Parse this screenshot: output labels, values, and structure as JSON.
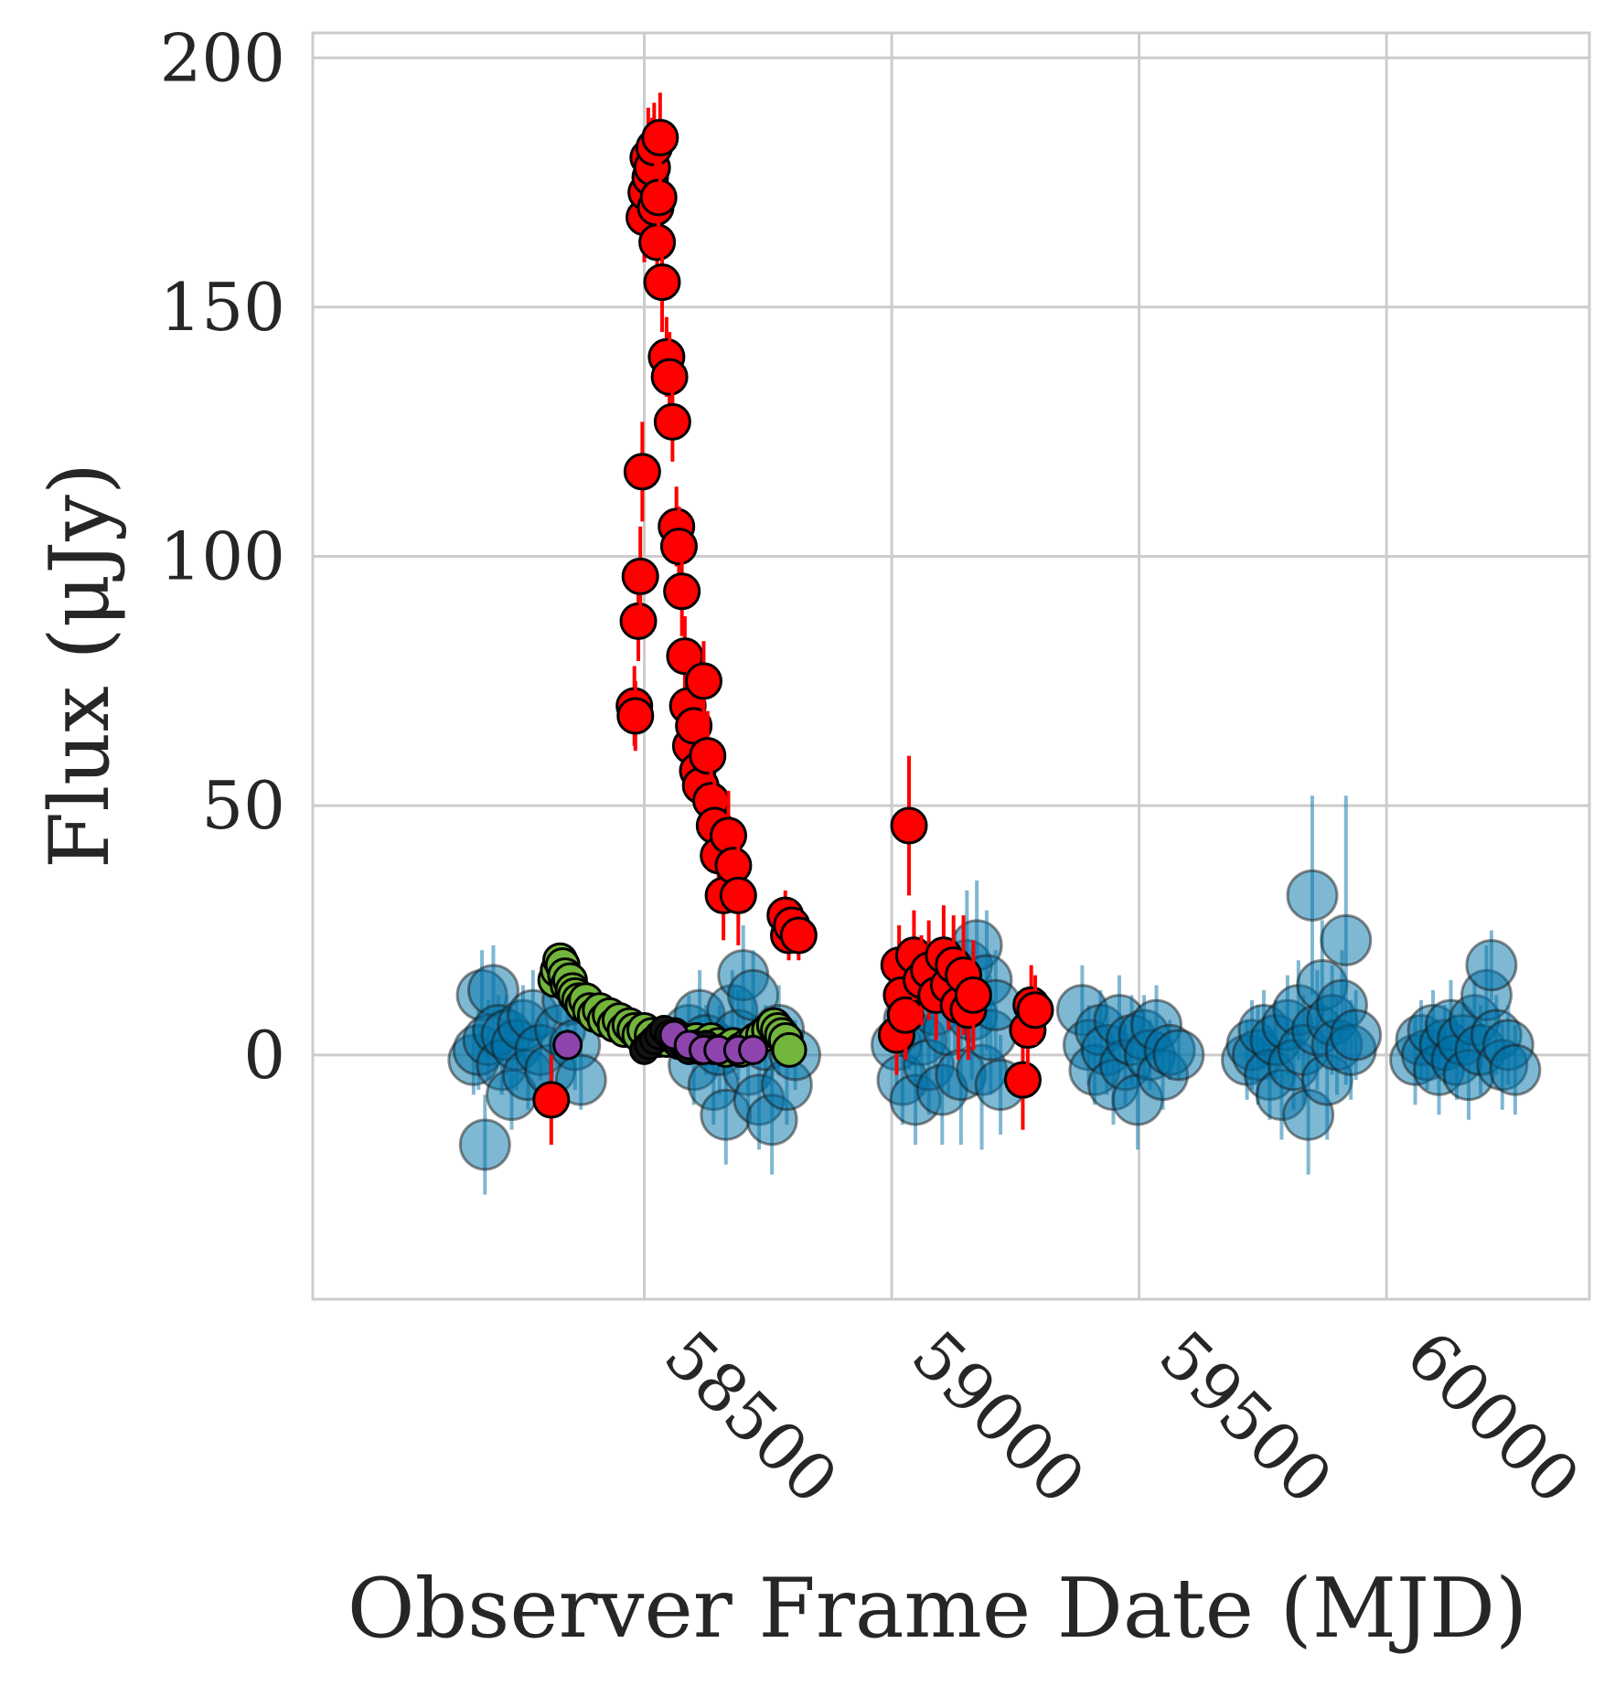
{
  "chart_data": {
    "type": "scatter",
    "title": "",
    "xlabel": "Observer Frame Date (MJD)",
    "ylabel": "Flux (μJy)",
    "xlim": [
      57830,
      60410
    ],
    "ylim": [
      -49,
      205
    ],
    "xticks": [
      58500,
      59000,
      59500,
      60000
    ],
    "xtick_labels": [
      "58500",
      "59000",
      "59500",
      "60000"
    ],
    "yticks": [
      0,
      50,
      100,
      150,
      200
    ],
    "ytick_labels": [
      "0",
      "50",
      "100",
      "150",
      "200"
    ],
    "grid": true,
    "legend": "none",
    "series": [
      {
        "color": "#0072a8",
        "alpha": 0.5,
        "points": [
          [
            58155,
            -1,
            7
          ],
          [
            58165,
            1,
            8
          ],
          [
            58172,
            12,
            9
          ],
          [
            58178,
            -18,
            10
          ],
          [
            58185,
            3,
            8
          ],
          [
            58195,
            13,
            9
          ],
          [
            58205,
            5,
            7
          ],
          [
            58212,
            -2,
            6
          ],
          [
            58222,
            4,
            8
          ],
          [
            58232,
            -8,
            7
          ],
          [
            58242,
            2,
            9
          ],
          [
            58255,
            6,
            8
          ],
          [
            58265,
            -4,
            7
          ],
          [
            58275,
            8,
            9
          ],
          [
            58290,
            1,
            6
          ],
          [
            58310,
            -3,
            8
          ],
          [
            58330,
            5,
            7
          ],
          [
            58345,
            11,
            8
          ],
          [
            58360,
            2,
            9
          ],
          [
            58372,
            -5,
            6
          ],
          [
            58590,
            5,
            7
          ],
          [
            58600,
            -2,
            8
          ],
          [
            58612,
            8,
            9
          ],
          [
            58625,
            3,
            7
          ],
          [
            58640,
            -6,
            8
          ],
          [
            58652,
            1,
            9
          ],
          [
            58665,
            -12,
            10
          ],
          [
            58678,
            9,
            8
          ],
          [
            58690,
            4,
            9
          ],
          [
            58700,
            16,
            10
          ],
          [
            58710,
            -3,
            8
          ],
          [
            58720,
            12,
            9
          ],
          [
            58732,
            -9,
            10
          ],
          [
            58745,
            2,
            8
          ],
          [
            58758,
            -13,
            11
          ],
          [
            58772,
            5,
            9
          ],
          [
            58788,
            -6,
            8
          ],
          [
            58805,
            0,
            7
          ],
          [
            59010,
            2,
            8
          ],
          [
            59022,
            -5,
            9
          ],
          [
            59035,
            7,
            10
          ],
          [
            59048,
            -9,
            9
          ],
          [
            59060,
            3,
            11
          ],
          [
            59075,
            -2,
            10
          ],
          [
            59088,
            9,
            12
          ],
          [
            59102,
            -7,
            11
          ],
          [
            59115,
            5,
            13
          ],
          [
            59128,
            13,
            12
          ],
          [
            59140,
            -4,
            14
          ],
          [
            59152,
            18,
            15
          ],
          [
            59162,
            8,
            13
          ],
          [
            59172,
            22,
            13
          ],
          [
            59182,
            -3,
            16
          ],
          [
            59192,
            15,
            14
          ],
          [
            59200,
            4,
            12
          ],
          [
            59210,
            10,
            11
          ],
          [
            59220,
            -6,
            10
          ],
          [
            59385,
            9,
            9
          ],
          [
            59398,
            2,
            8
          ],
          [
            59410,
            -3,
            7
          ],
          [
            59422,
            5,
            8
          ],
          [
            59435,
            1,
            9
          ],
          [
            59448,
            -6,
            8
          ],
          [
            59460,
            7,
            9
          ],
          [
            59472,
            -2,
            8
          ],
          [
            59485,
            3,
            9
          ],
          [
            59497,
            -9,
            10
          ],
          [
            59510,
            4,
            8
          ],
          [
            59522,
            0,
            7
          ],
          [
            59535,
            6,
            8
          ],
          [
            59548,
            -4,
            7
          ],
          [
            59562,
            1,
            6
          ],
          [
            59580,
            0,
            5
          ],
          [
            59718,
            -1,
            8
          ],
          [
            59728,
            2,
            9
          ],
          [
            59740,
            0,
            10
          ],
          [
            59752,
            5,
            8
          ],
          [
            59764,
            -4,
            9
          ],
          [
            59776,
            3,
            8
          ],
          [
            59788,
            -8,
            9
          ],
          [
            59800,
            6,
            10
          ],
          [
            59812,
            -2,
            9
          ],
          [
            59822,
            9,
            10
          ],
          [
            59832,
            1,
            11
          ],
          [
            59842,
            -12,
            12
          ],
          [
            59850,
            32,
            20
          ],
          [
            59860,
            5,
            12
          ],
          [
            59870,
            14,
            13
          ],
          [
            59880,
            -5,
            12
          ],
          [
            59890,
            7,
            11
          ],
          [
            59900,
            2,
            10
          ],
          [
            59910,
            10,
            11
          ],
          [
            59918,
            23,
            29
          ],
          [
            59928,
            1,
            10
          ],
          [
            59938,
            4,
            9
          ],
          [
            60058,
            -1,
            9
          ],
          [
            60070,
            3,
            8
          ],
          [
            60082,
            0,
            7
          ],
          [
            60094,
            5,
            8
          ],
          [
            60106,
            -3,
            9
          ],
          [
            60118,
            2,
            8
          ],
          [
            60130,
            6,
            9
          ],
          [
            60142,
            -1,
            8
          ],
          [
            60154,
            3,
            7
          ],
          [
            60166,
            -4,
            9
          ],
          [
            60178,
            7,
            8
          ],
          [
            60190,
            1,
            9
          ],
          [
            60202,
            12,
            10
          ],
          [
            60212,
            18,
            7
          ],
          [
            60222,
            4,
            8
          ],
          [
            60234,
            -2,
            9
          ],
          [
            60246,
            2,
            8
          ],
          [
            60260,
            -3,
            9
          ]
        ]
      },
      {
        "color": "#ff0000",
        "points": [
          [
            58312,
            -9,
            9
          ],
          [
            58480,
            70,
            8
          ],
          [
            58482,
            68,
            7
          ],
          [
            58488,
            87,
            8
          ],
          [
            58492,
            96,
            10
          ],
          [
            58496,
            117,
            10
          ],
          [
            58500,
            168,
            9
          ],
          [
            58504,
            173,
            9
          ],
          [
            58508,
            180,
            10
          ],
          [
            58512,
            176,
            9
          ],
          [
            58516,
            178,
            10
          ],
          [
            58520,
            182,
            9
          ],
          [
            58523,
            170,
            10
          ],
          [
            58526,
            163,
            9
          ],
          [
            58529,
            172,
            9
          ],
          [
            58532,
            184,
            9
          ],
          [
            58536,
            155,
            10
          ],
          [
            58545,
            140,
            8
          ],
          [
            58551,
            136,
            9
          ],
          [
            58557,
            127,
            8
          ],
          [
            58565,
            106,
            8
          ],
          [
            58570,
            102,
            8
          ],
          [
            58576,
            93,
            9
          ],
          [
            58582,
            80,
            8
          ],
          [
            58588,
            70,
            8
          ],
          [
            58594,
            62,
            7
          ],
          [
            58600,
            66,
            8
          ],
          [
            58608,
            57,
            8
          ],
          [
            58614,
            54,
            9
          ],
          [
            58620,
            75,
            8
          ],
          [
            58628,
            60,
            9
          ],
          [
            58635,
            51,
            9
          ],
          [
            58642,
            46,
            9
          ],
          [
            58650,
            40,
            8
          ],
          [
            58660,
            32,
            9
          ],
          [
            58670,
            44,
            9
          ],
          [
            58680,
            38,
            8
          ],
          [
            58690,
            32,
            10
          ],
          [
            58785,
            28,
            5
          ],
          [
            58792,
            24,
            5
          ],
          [
            58798,
            26,
            5
          ],
          [
            58812,
            24,
            5
          ],
          [
            59010,
            4,
            8
          ],
          [
            59015,
            18,
            8
          ],
          [
            59020,
            12,
            7
          ],
          [
            59028,
            8,
            9
          ],
          [
            59035,
            46,
            14
          ],
          [
            59045,
            20,
            9
          ],
          [
            59060,
            15,
            9
          ],
          [
            59075,
            17,
            10
          ],
          [
            59090,
            12,
            9
          ],
          [
            59105,
            20,
            10
          ],
          [
            59115,
            14,
            9
          ],
          [
            59125,
            18,
            10
          ],
          [
            59135,
            10,
            11
          ],
          [
            59145,
            16,
            12
          ],
          [
            59155,
            9,
            10
          ],
          [
            59165,
            12,
            11
          ],
          [
            59265,
            -5,
            10
          ],
          [
            59275,
            5,
            8
          ],
          [
            59282,
            10,
            8
          ],
          [
            59290,
            9,
            7
          ]
        ]
      },
      {
        "color": "#72b53c",
        "points": [
          [
            58320,
            15,
            2
          ],
          [
            58325,
            17,
            2
          ],
          [
            58330,
            19,
            2
          ],
          [
            58335,
            18,
            2
          ],
          [
            58340,
            16,
            2
          ],
          [
            58345,
            14,
            2
          ],
          [
            58350,
            15,
            2
          ],
          [
            58355,
            13,
            2
          ],
          [
            58360,
            12,
            2
          ],
          [
            58368,
            11,
            2
          ],
          [
            58375,
            10,
            2
          ],
          [
            58382,
            11,
            2
          ],
          [
            58390,
            9,
            2
          ],
          [
            58400,
            8,
            2
          ],
          [
            58410,
            9,
            2
          ],
          [
            58420,
            7,
            2
          ],
          [
            58430,
            8,
            2
          ],
          [
            58440,
            6,
            2
          ],
          [
            58450,
            7,
            2
          ],
          [
            58460,
            5,
            2
          ],
          [
            58470,
            6,
            2
          ],
          [
            58480,
            5,
            2
          ],
          [
            58490,
            4,
            2
          ],
          [
            58500,
            5,
            2
          ],
          [
            58515,
            4,
            2
          ],
          [
            58530,
            3,
            2
          ],
          [
            58545,
            3,
            2
          ],
          [
            58560,
            4,
            2
          ],
          [
            58575,
            3,
            2
          ],
          [
            58590,
            2,
            2
          ],
          [
            58605,
            3,
            2
          ],
          [
            58620,
            2,
            2
          ],
          [
            58635,
            3,
            2
          ],
          [
            58650,
            2,
            2
          ],
          [
            58665,
            1,
            2
          ],
          [
            58680,
            2,
            2
          ],
          [
            58695,
            1,
            2
          ],
          [
            58710,
            2,
            2
          ],
          [
            58725,
            3,
            2
          ],
          [
            58740,
            4,
            2
          ],
          [
            58752,
            5,
            2
          ],
          [
            58762,
            6,
            2
          ],
          [
            58770,
            5,
            2
          ],
          [
            58778,
            4,
            2
          ],
          [
            58786,
            3,
            2
          ],
          [
            58793,
            1,
            2
          ]
        ]
      },
      {
        "color": "#141414",
        "points": [
          [
            58500,
            1,
            1
          ],
          [
            58510,
            2,
            1
          ],
          [
            58520,
            3,
            1
          ],
          [
            58530,
            4,
            1
          ],
          [
            58540,
            5,
            1
          ],
          [
            58550,
            4,
            1
          ],
          [
            58560,
            3,
            1
          ],
          [
            58570,
            2,
            1
          ],
          [
            58580,
            2,
            1
          ],
          [
            58590,
            1,
            1
          ],
          [
            58600,
            2,
            1
          ],
          [
            58612,
            1,
            1
          ],
          [
            58625,
            2,
            1
          ],
          [
            58640,
            1,
            1
          ]
        ]
      },
      {
        "color": "#8e44ad",
        "points": [
          [
            58345,
            2,
            1
          ],
          [
            58560,
            4,
            1
          ],
          [
            58590,
            2,
            1
          ],
          [
            58620,
            1,
            1
          ],
          [
            58650,
            1,
            1
          ],
          [
            58690,
            1,
            1
          ],
          [
            58720,
            1,
            1
          ]
        ]
      }
    ]
  }
}
